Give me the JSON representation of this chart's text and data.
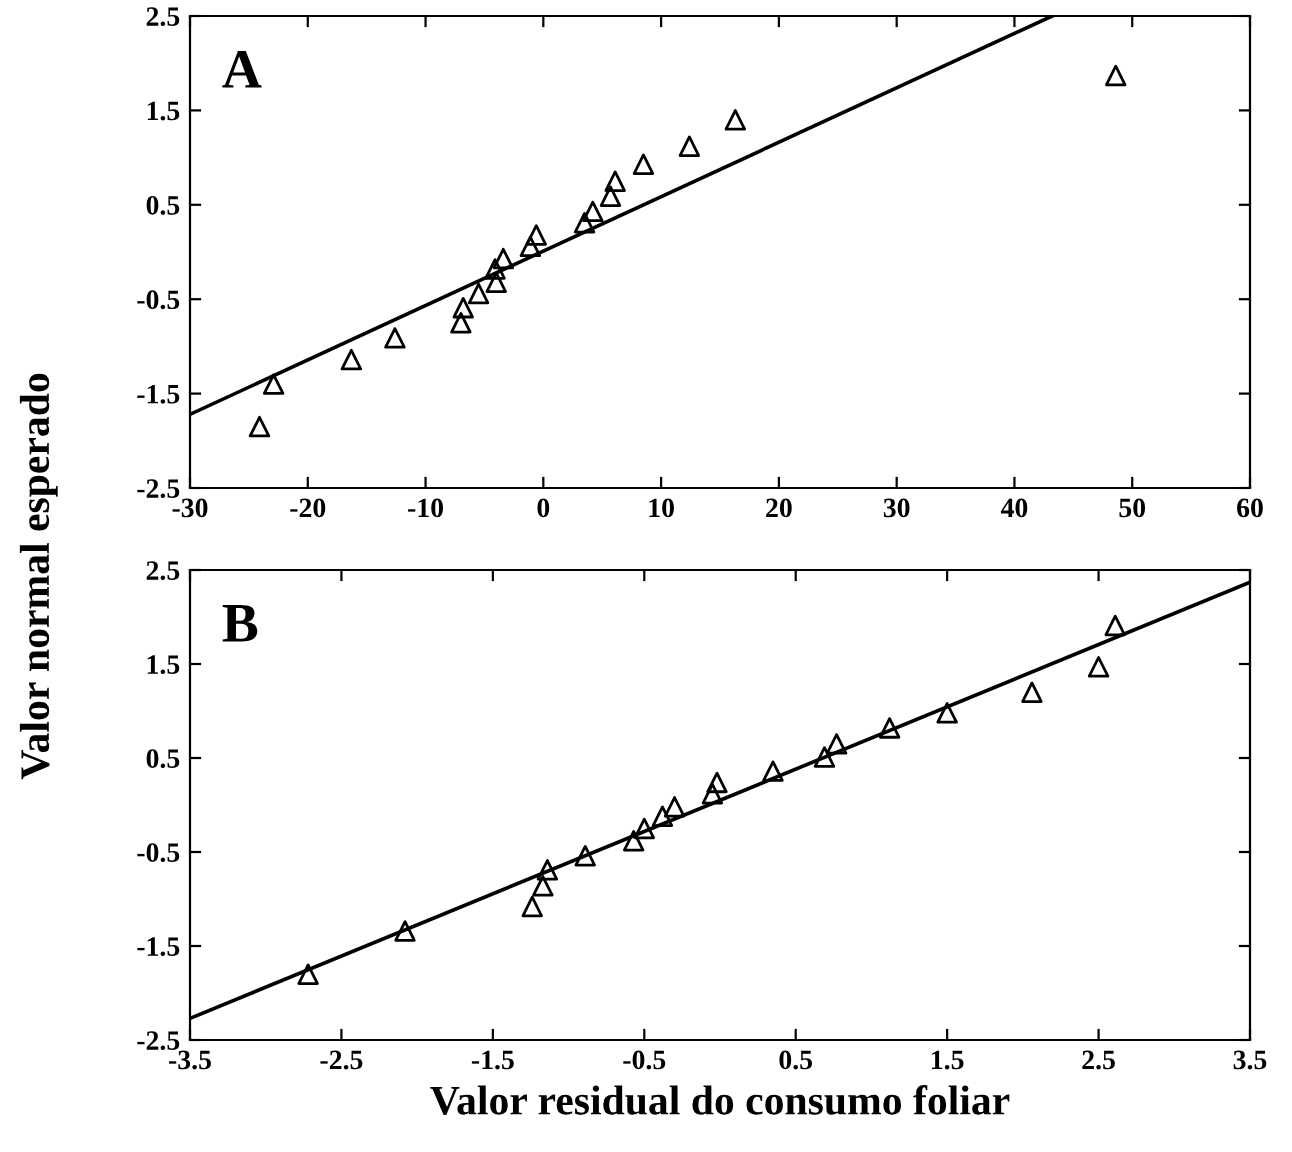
{
  "chart_data": [
    {
      "type": "scatter",
      "ylabel": "Valor normal esperado",
      "annotations": [
        "A"
      ],
      "grid": false,
      "xlim": [
        -30,
        60
      ],
      "xticks": [
        -30,
        -20,
        -10,
        0,
        10,
        20,
        30,
        40,
        50,
        60
      ],
      "ylim": [
        -2.5,
        2.5
      ],
      "yticks": [
        -2.5,
        -1.5,
        -0.5,
        0.5,
        1.5,
        2.5
      ],
      "series": [
        {
          "marker": "triangle",
          "color": "#000000",
          "x": [
            -24.1,
            -22.9,
            -16.3,
            -12.6,
            -7.0,
            -6.8,
            -5.5,
            -4.0,
            -4.1,
            -3.4,
            -1.1,
            -0.6,
            3.5,
            4.2,
            5.7,
            6.1,
            8.5,
            12.4,
            16.3,
            48.6
          ],
          "values": [
            -1.85,
            -1.4,
            -1.14,
            -0.91,
            -0.75,
            -0.59,
            -0.44,
            -0.32,
            -0.18,
            -0.07,
            0.06,
            0.18,
            0.31,
            0.43,
            0.59,
            0.75,
            0.93,
            1.12,
            1.4,
            1.87
          ]
        },
        {
          "type": "line",
          "marker": "none",
          "color": "#000000",
          "x": [
            -30,
            43.2
          ],
          "values": [
            -1.72,
            2.5
          ]
        }
      ]
    },
    {
      "type": "scatter",
      "xlabel": "Valor residual do consumo foliar",
      "annotations": [
        "B"
      ],
      "grid": false,
      "xlim": [
        -3.5,
        3.5
      ],
      "xticks": [
        -3.5,
        -2.5,
        -1.5,
        -0.5,
        0.5,
        1.5,
        2.5,
        3.5
      ],
      "ylim": [
        -2.5,
        2.5
      ],
      "yticks": [
        -2.5,
        -1.5,
        -0.5,
        0.5,
        1.5,
        2.5
      ],
      "series": [
        {
          "marker": "triangle",
          "color": "#000000",
          "x": [
            -2.72,
            -2.08,
            -1.24,
            -1.17,
            -1.14,
            -0.89,
            -0.57,
            -0.5,
            -0.38,
            -0.3,
            -0.05,
            -0.02,
            0.35,
            0.69,
            0.77,
            1.12,
            1.5,
            2.06,
            2.5,
            2.61
          ],
          "values": [
            -1.8,
            -1.34,
            -1.08,
            -0.86,
            -0.69,
            -0.54,
            -0.38,
            -0.25,
            -0.12,
            -0.02,
            0.12,
            0.24,
            0.36,
            0.51,
            0.65,
            0.82,
            0.98,
            1.2,
            1.47,
            1.91
          ]
        },
        {
          "type": "line",
          "marker": "none",
          "color": "#000000",
          "x": [
            -3.5,
            3.5
          ],
          "values": [
            -2.27,
            2.37
          ]
        }
      ]
    }
  ]
}
